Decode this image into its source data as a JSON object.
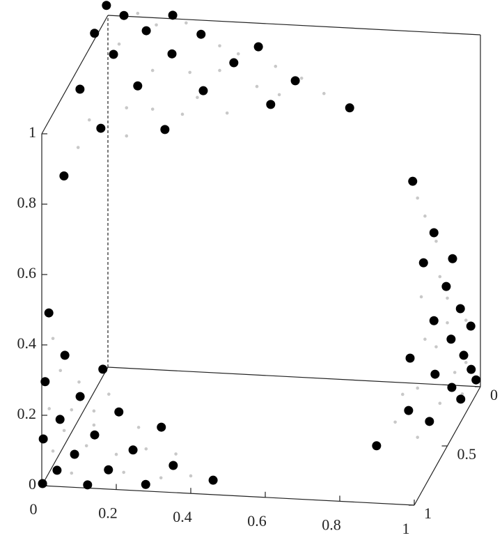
{
  "chart_data": {
    "type": "scatter3d",
    "xlim": [
      0,
      1
    ],
    "ylim": [
      0,
      1
    ],
    "zlim": [
      0,
      1
    ],
    "xticks": [
      0,
      0.2,
      0.4,
      0.6,
      0.8,
      1
    ],
    "yticks": [
      0,
      0.5,
      1
    ],
    "zticks": [
      0,
      0.2,
      0.4,
      0.6,
      0.8,
      1
    ],
    "series": [
      {
        "color": "#c8c8c8",
        "x": [
          0.08,
          0.13,
          0.21,
          0.3,
          0.35,
          0.45,
          0.52,
          0.58,
          0.03,
          0.12,
          0.22,
          0.3,
          0.4,
          0.05,
          0.12,
          0.2,
          0.32,
          -0.05,
          -0.08,
          0.05,
          0.24,
          0.46,
          0.03,
          0.05,
          0.1,
          0.02,
          0.08,
          0.14,
          0.18,
          0.26,
          0.03,
          0.12,
          0.2,
          0.28,
          0.36,
          0.4,
          0.32,
          0.22,
          0.08,
          0.14,
          0.06,
          0.92,
          0.94,
          0.97,
          0.98,
          1.0,
          1.05,
          0.93,
          0.97,
          0.94,
          1.05,
          1.02,
          0.92,
          0.88,
          0.98,
          0.86,
          0.92,
          1.04,
          1.0
        ],
        "y": [
          0,
          0,
          0,
          0,
          0,
          0,
          0,
          0,
          0,
          0,
          0,
          0,
          0,
          0,
          0,
          0,
          0,
          0,
          0,
          0,
          0,
          0,
          1,
          1,
          1,
          1,
          1,
          1,
          1,
          1,
          1,
          1,
          1,
          1,
          1,
          1,
          1,
          1,
          1,
          1,
          1,
          0.5,
          0.5,
          0.5,
          0.5,
          0.5,
          0.5,
          0.5,
          0.5,
          0.5,
          0.5,
          0.5,
          0.5,
          0.5,
          0.5,
          0.5,
          0.5,
          0.5,
          0.5
        ],
        "z": [
          1.01,
          0.98,
          0.99,
          0.93,
          0.91,
          0.88,
          0.85,
          0.81,
          0.92,
          0.85,
          0.85,
          0.86,
          0.82,
          0.74,
          0.74,
          0.73,
          0.74,
          0.7,
          0.62,
          0.66,
          0.78,
          0.8,
          0.42,
          0.33,
          0.3,
          0.22,
          0.22,
          0.22,
          0.27,
          0.18,
          0.1,
          0.12,
          0.1,
          0.12,
          0.11,
          0.05,
          0.04,
          0.05,
          0.04,
          0.18,
          0.16,
          0.7,
          0.65,
          0.58,
          0.48,
          0.42,
          0.36,
          0.42,
          0.28,
          0.3,
          0.24,
          0.21,
          0.16,
          0.14,
          0.12,
          0.06,
          0.02,
          0.15,
          0.35
        ]
      },
      {
        "color": "#000000",
        "x": [
          -0.004,
          0.043,
          0.174,
          -0.036,
          0.103,
          0.25,
          0.404,
          0.015,
          0.172,
          0.338,
          -0.075,
          0.08,
          0.256,
          0.503,
          0.437,
          0.649,
          -0.019,
          0.153,
          -0.118,
          0.019,
          0.009,
          0.062,
          0.164,
          0.103,
          0.049,
          0.207,
          0.004,
          0.142,
          0.321,
          0.088,
          0.245,
          0.041,
          0.179,
          0.353,
          0.002,
          0.123,
          0.279,
          0.46,
          0.907,
          0.964,
          0.936,
          1.014,
          0.997,
          1.035,
          1.063,
          0.964,
          1.01,
          1.044,
          0.9,
          1.064,
          1.077,
          0.967,
          1.012,
          1.036,
          0.896,
          0.952,
          0.81
        ],
        "y": [
          0,
          0,
          0,
          0,
          0,
          0,
          0,
          0,
          0,
          0,
          0,
          0,
          0,
          0,
          0,
          0,
          0,
          0,
          0,
          1,
          1,
          1,
          1,
          1,
          1,
          1,
          1,
          1,
          1,
          1,
          1,
          1,
          1,
          1,
          1,
          1,
          1,
          1,
          0.5,
          0.5,
          0.5,
          0.5,
          0.5,
          0.5,
          0.5,
          0.5,
          0.5,
          0.5,
          0.5,
          0.5,
          0.5,
          0.5,
          0.5,
          0.5,
          0.5,
          0.5,
          0.5
        ],
        "z": [
          1.028,
          1.002,
          1.01,
          0.947,
          0.962,
          0.96,
          0.933,
          0.89,
          0.9,
          0.884,
          0.786,
          0.804,
          0.8,
          0.842,
          0.771,
          0.773,
          0.678,
          0.684,
          0.537,
          0.492,
          0.296,
          0.374,
          0.34,
          0.259,
          0.191,
          0.221,
          0.133,
          0.152,
          0.184,
          0.094,
          0.115,
          0.046,
          0.055,
          0.077,
          0.006,
          0.009,
          0.019,
          0.041,
          0.747,
          0.604,
          0.517,
          0.533,
          0.453,
          0.392,
          0.344,
          0.354,
          0.304,
          0.26,
          0.244,
          0.221,
          0.192,
          0.202,
          0.167,
          0.135,
          0.095,
          0.067,
          -0.01
        ]
      }
    ]
  }
}
